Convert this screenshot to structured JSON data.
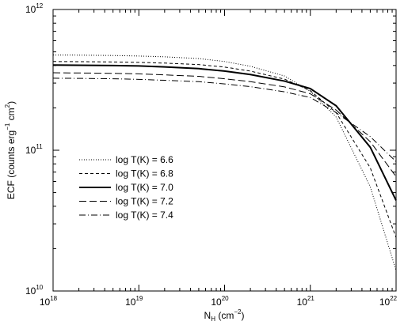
{
  "chart_data": {
    "type": "line",
    "x_scale": "log",
    "y_scale": "log",
    "xlim": [
      1e+18,
      1e+22
    ],
    "ylim": [
      10000000000.0,
      1000000000000.0
    ],
    "grid": false,
    "legend_position": "left-center",
    "xlabel": {
      "main": "N",
      "sub": "H",
      "unit_open": " (cm",
      "unit_exp": "−2",
      "unit_close": ")"
    },
    "ylabel": {
      "prefix": "ECF (counts erg",
      "exp1": "−1",
      "mid": " cm",
      "exp2": "2",
      "suffix": ")"
    },
    "x_ticks": [
      {
        "value": 1e+18,
        "base": "10",
        "exp": "18"
      },
      {
        "value": 1e+19,
        "base": "10",
        "exp": "19"
      },
      {
        "value": 1e+20,
        "base": "10",
        "exp": "20"
      },
      {
        "value": 1e+21,
        "base": "10",
        "exp": "21"
      },
      {
        "value": 1e+22,
        "base": "10",
        "exp": "22"
      }
    ],
    "y_ticks": [
      {
        "value": 10000000000.0,
        "base": "10",
        "exp": "10"
      },
      {
        "value": 100000000000.0,
        "base": "10",
        "exp": "11"
      },
      {
        "value": 1000000000000.0,
        "base": "10",
        "exp": "12"
      }
    ],
    "x": [
      1e+18,
      2e+18,
      5e+18,
      1e+19,
      2e+19,
      5e+19,
      1e+20,
      2e+20,
      5e+20,
      1e+21,
      2e+21,
      5e+21,
      1e+22
    ],
    "series": [
      {
        "name": "log T(K) = 6.6",
        "dash": "dotted",
        "width": 1,
        "values": [
          475000000000.0,
          474000000000.0,
          471000000000.0,
          467000000000.0,
          461000000000.0,
          448000000000.0,
          427000000000.0,
          395000000000.0,
          337000000000.0,
          262000000000.0,
          172000000000.0,
          55000000000.0,
          14000000000.0
        ]
      },
      {
        "name": "log T(K) = 6.8",
        "dash": "short-dash",
        "width": 1,
        "values": [
          427000000000.0,
          426000000000.0,
          424000000000.0,
          421000000000.0,
          416000000000.0,
          406000000000.0,
          390000000000.0,
          365000000000.0,
          320000000000.0,
          265000000000.0,
          185000000000.0,
          75000000000.0,
          24000000000.0
        ]
      },
      {
        "name": "log T(K) = 7.0",
        "dash": "solid",
        "width": 2,
        "values": [
          403000000000.0,
          402000000000.0,
          400000000000.0,
          397000000000.0,
          391000000000.0,
          380000000000.0,
          365000000000.0,
          345000000000.0,
          310000000000.0,
          274000000000.0,
          207000000000.0,
          105000000000.0,
          44000000000.0
        ]
      },
      {
        "name": "log T(K) = 7.2",
        "dash": "long-dash",
        "width": 1,
        "values": [
          355000000000.0,
          354000000000.0,
          352000000000.0,
          349000000000.0,
          343000000000.0,
          335000000000.0,
          322000000000.0,
          307000000000.0,
          282000000000.0,
          252000000000.0,
          193000000000.0,
          115000000000.0,
          65000000000.0
        ]
      },
      {
        "name": "log T(K) = 7.4",
        "dash": "dash-dot",
        "width": 1,
        "values": [
          325000000000.0,
          324000000000.0,
          322000000000.0,
          319000000000.0,
          314000000000.0,
          307000000000.0,
          296000000000.0,
          283000000000.0,
          260000000000.0,
          237000000000.0,
          185000000000.0,
          125000000000.0,
          83000000000.0
        ]
      }
    ],
    "legend": [
      "log T(K) = 6.6",
      "log T(K) = 6.8",
      "log T(K) = 7.0",
      "log T(K) = 7.2",
      "log T(K) = 7.4"
    ]
  }
}
